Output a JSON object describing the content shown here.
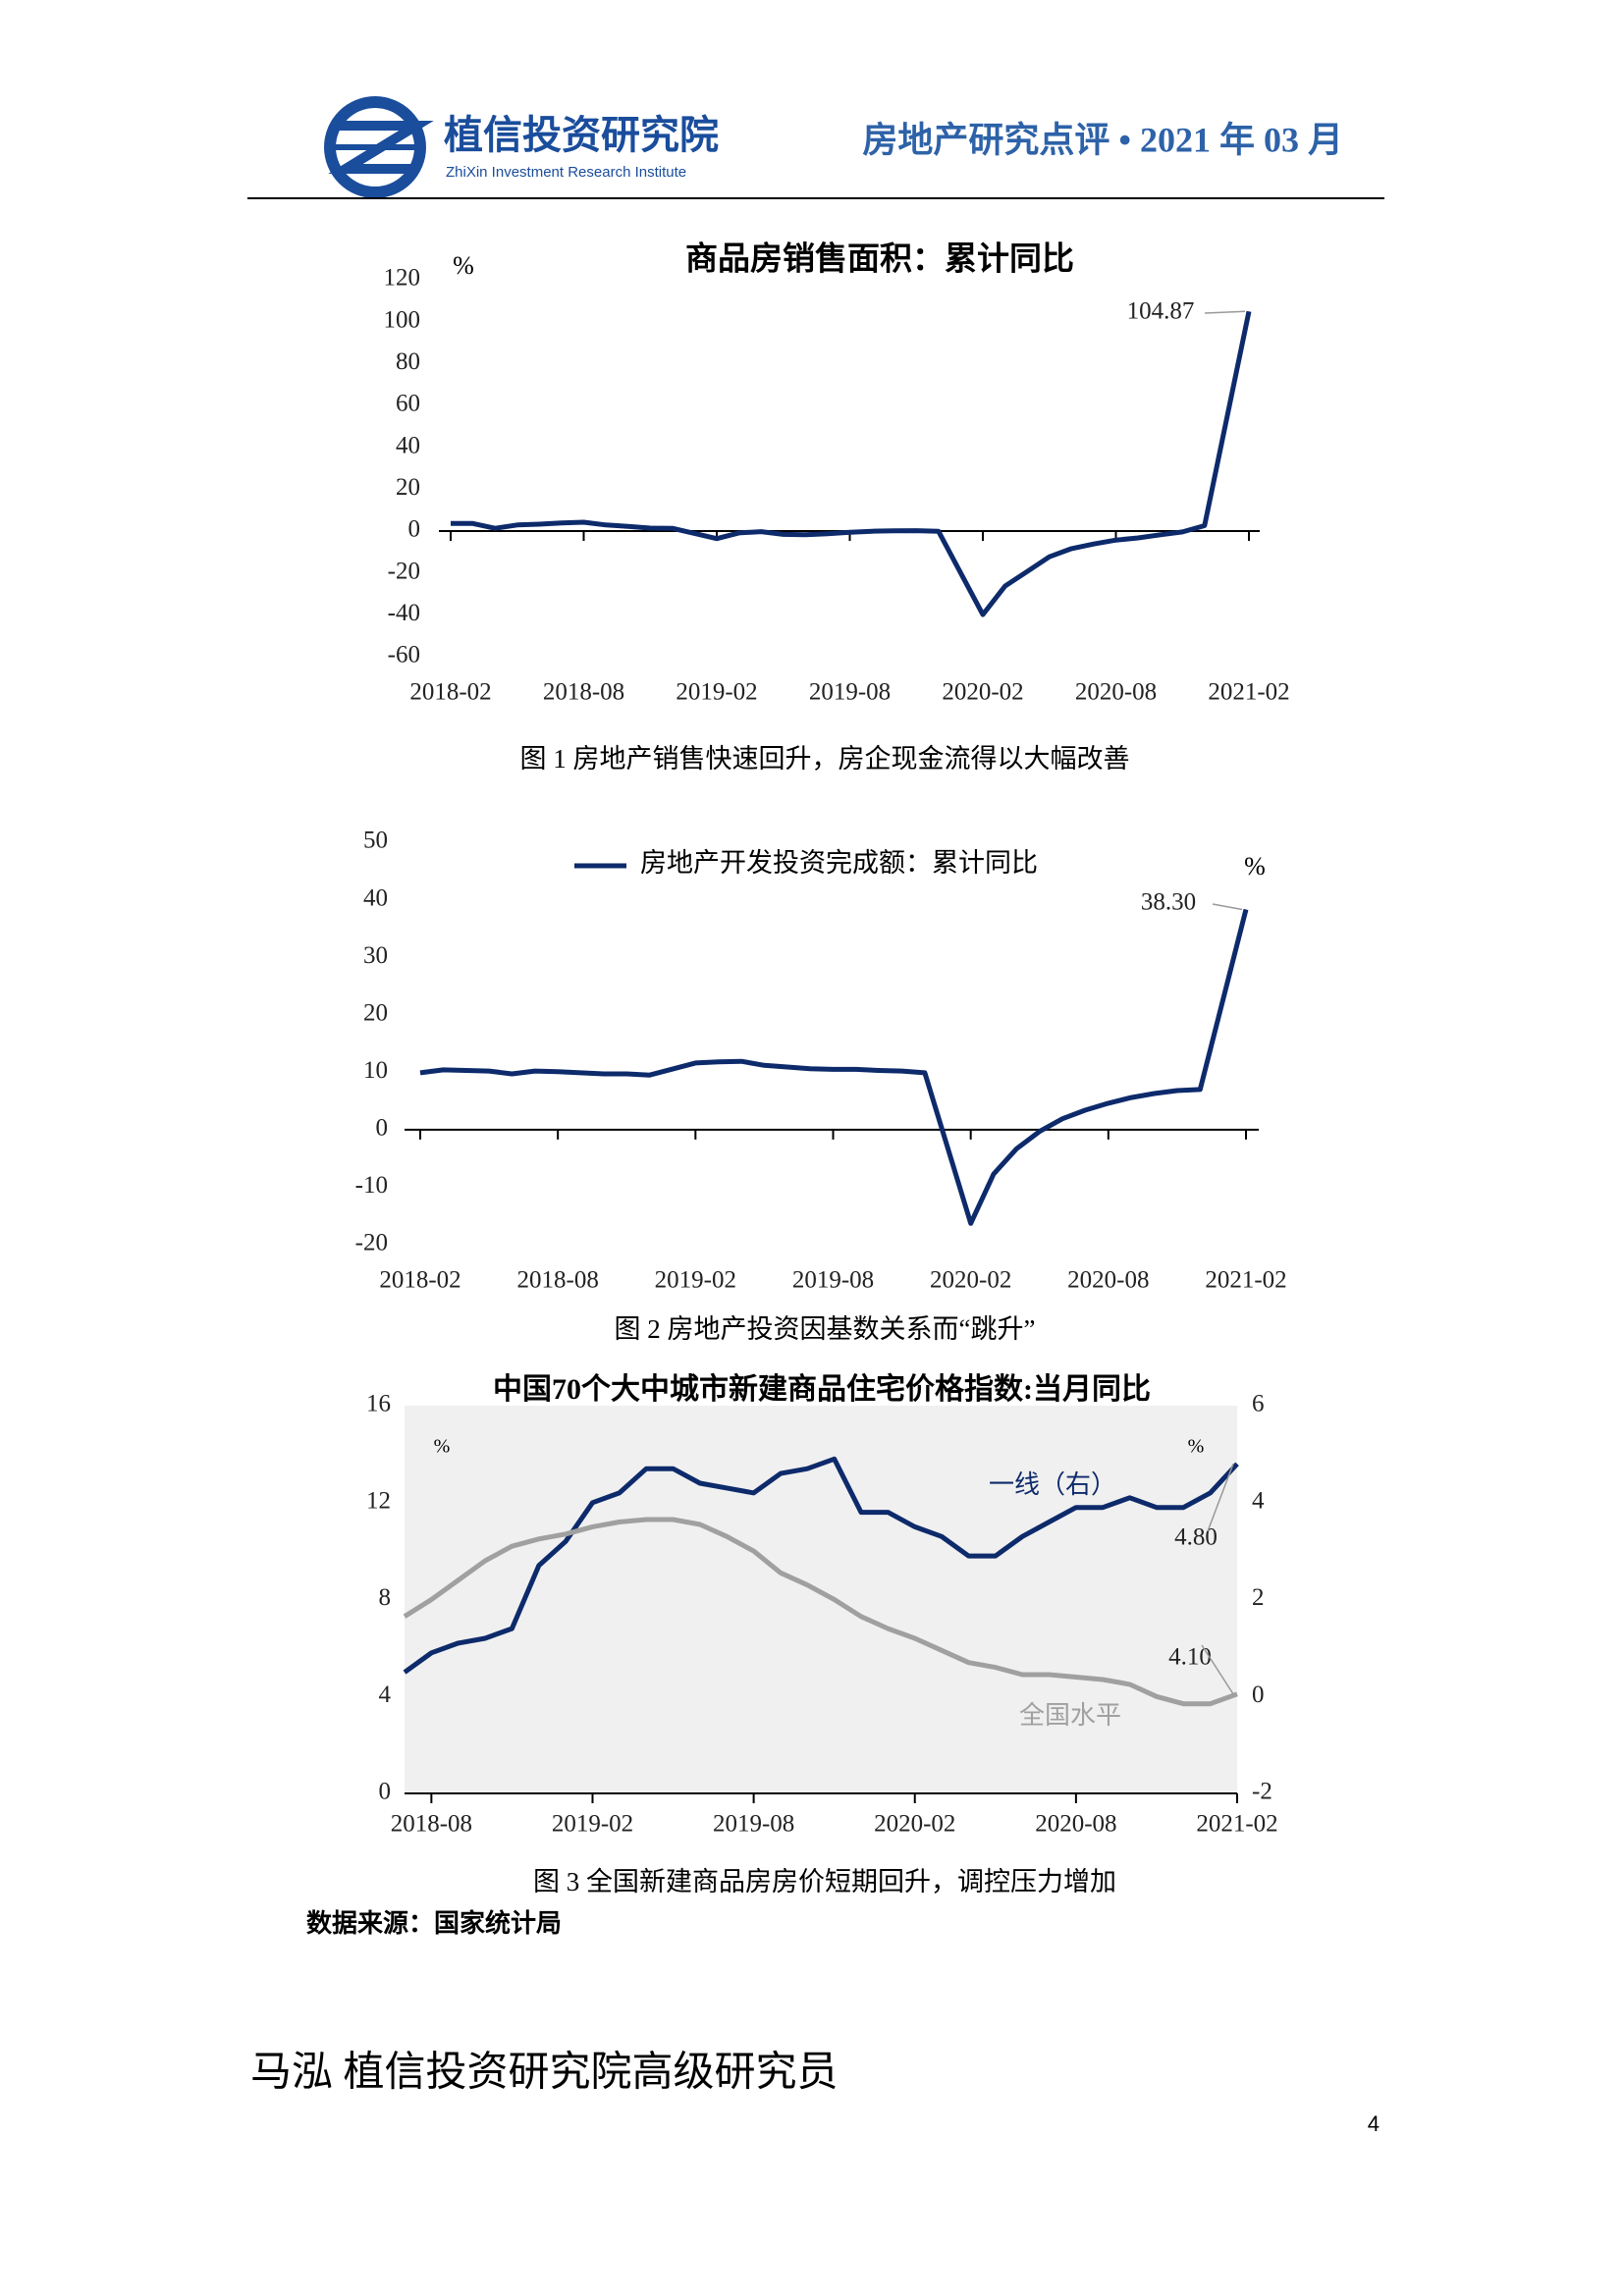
{
  "header": {
    "org_name": "植信投资研究院",
    "org_name_en": "ZhiXin Investment Research Institute",
    "report": "房地产研究点评 • 2021 年 03 月"
  },
  "chart_data": [
    {
      "type": "line",
      "title": "商品房销售面积：累计同比",
      "y_label": "%",
      "x": [
        "2018-02",
        "2018-03",
        "2018-04",
        "2018-05",
        "2018-06",
        "2018-07",
        "2018-08",
        "2018-09",
        "2018-10",
        "2018-11",
        "2018-12",
        "2019-02",
        "2019-03",
        "2019-04",
        "2019-05",
        "2019-06",
        "2019-07",
        "2019-08",
        "2019-09",
        "2019-10",
        "2019-11",
        "2019-12",
        "2020-02",
        "2020-03",
        "2020-04",
        "2020-05",
        "2020-06",
        "2020-07",
        "2020-08",
        "2020-09",
        "2020-10",
        "2020-11",
        "2020-12",
        "2021-02"
      ],
      "xlim": [
        "2018-02",
        "2021-02"
      ],
      "xticks": [
        "2018-02",
        "2018-08",
        "2019-02",
        "2019-08",
        "2020-02",
        "2020-08",
        "2021-02"
      ],
      "ylim": [
        -60,
        120
      ],
      "yticks": [
        -60,
        -40,
        -20,
        0,
        20,
        40,
        60,
        80,
        100,
        120
      ],
      "series": [
        {
          "color": "#0d2a6b",
          "values": [
            3.6,
            3.6,
            1.3,
            2.9,
            3.3,
            3.9,
            4.2,
            2.9,
            2.2,
            1.4,
            1.3,
            -3.6,
            -0.9,
            -0.3,
            -1.6,
            -1.8,
            -1.3,
            -0.6,
            -0.1,
            0.1,
            0.2,
            -0.1,
            -39.9,
            -26.3,
            -19.3,
            -12.3,
            -8.4,
            -6.2,
            -4.3,
            -3.3,
            -1.8,
            -0.4,
            2.6,
            104.87
          ]
        }
      ]
    },
    {
      "type": "line",
      "legend": "top",
      "y_label": "%",
      "x": [
        "2018-02",
        "2018-03",
        "2018-04",
        "2018-05",
        "2018-06",
        "2018-07",
        "2018-08",
        "2018-09",
        "2018-10",
        "2018-11",
        "2018-12",
        "2019-02",
        "2019-03",
        "2019-04",
        "2019-05",
        "2019-06",
        "2019-07",
        "2019-08",
        "2019-09",
        "2019-10",
        "2019-11",
        "2019-12",
        "2020-02",
        "2020-03",
        "2020-04",
        "2020-05",
        "2020-06",
        "2020-07",
        "2020-08",
        "2020-09",
        "2020-10",
        "2020-11",
        "2020-12",
        "2021-02"
      ],
      "xlim": [
        "2018-02",
        "2021-02"
      ],
      "xticks": [
        "2018-02",
        "2018-08",
        "2019-02",
        "2019-08",
        "2020-02",
        "2020-08",
        "2021-02"
      ],
      "ylim": [
        -20,
        50
      ],
      "yticks": [
        -20,
        -10,
        0,
        10,
        20,
        30,
        40,
        50
      ],
      "series": [
        {
          "name": "房地产开发投资完成额：累计同比",
          "color": "#0d2a6b",
          "values": [
            9.9,
            10.4,
            10.3,
            10.2,
            9.7,
            10.2,
            10.1,
            9.9,
            9.7,
            9.7,
            9.5,
            11.6,
            11.8,
            11.9,
            11.2,
            10.9,
            10.6,
            10.5,
            10.5,
            10.3,
            10.2,
            9.9,
            -16.3,
            -7.7,
            -3.3,
            -0.3,
            1.9,
            3.4,
            4.6,
            5.6,
            6.3,
            6.8,
            7.0,
            38.3
          ],
          "value_labels": [
            null,
            null,
            null,
            null,
            null,
            null,
            null,
            null,
            null,
            null,
            null,
            null,
            null,
            null,
            null,
            null,
            null,
            null,
            null,
            null,
            null,
            null,
            null,
            null,
            null,
            null,
            null,
            null,
            null,
            null,
            null,
            null,
            null,
            "38.30"
          ]
        }
      ]
    },
    {
      "type": "line",
      "title": "中国70个大中城市新建商品住宅价格指数:当月同比",
      "y_label": "%",
      "y2_label": "%",
      "background": "#f0f0f0",
      "x": [
        "2018-07",
        "2018-08",
        "2018-09",
        "2018-10",
        "2018-11",
        "2018-12",
        "2019-01",
        "2019-02",
        "2019-03",
        "2019-04",
        "2019-05",
        "2019-06",
        "2019-07",
        "2019-08",
        "2019-09",
        "2019-10",
        "2019-11",
        "2019-12",
        "2020-01",
        "2020-02",
        "2020-03",
        "2020-04",
        "2020-05",
        "2020-06",
        "2020-07",
        "2020-08",
        "2020-09",
        "2020-10",
        "2020-11",
        "2020-12",
        "2021-01",
        "2021-02"
      ],
      "xlim": [
        "2018-07",
        "2021-02"
      ],
      "xticks": [
        "2018-08",
        "2019-02",
        "2019-08",
        "2020-02",
        "2020-08",
        "2021-02"
      ],
      "ylim": [
        0,
        16
      ],
      "yticks": [
        0,
        4,
        8,
        12,
        16
      ],
      "y2lim": [
        -2,
        6
      ],
      "y2ticks": [
        -2,
        0,
        2,
        4,
        6
      ],
      "series": [
        {
          "name": "一线（右）",
          "axis": "y2",
          "color": "#0d2a6b",
          "values": [
            0.5,
            0.9,
            1.1,
            1.2,
            1.4,
            2.7,
            3.2,
            4.0,
            4.2,
            4.7,
            4.7,
            4.4,
            4.3,
            4.2,
            4.6,
            4.7,
            4.9,
            3.8,
            3.8,
            3.5,
            3.3,
            2.9,
            2.9,
            3.3,
            3.6,
            3.9,
            3.9,
            4.1,
            3.9,
            3.9,
            4.2,
            4.8
          ],
          "value_labels": [
            null,
            null,
            null,
            null,
            null,
            null,
            null,
            null,
            null,
            null,
            null,
            null,
            null,
            null,
            null,
            null,
            null,
            null,
            null,
            null,
            null,
            null,
            null,
            null,
            null,
            null,
            null,
            null,
            null,
            null,
            null,
            "4.80"
          ]
        },
        {
          "name": "全国水平",
          "color": "#a0a0a0",
          "values": [
            7.3,
            8.0,
            8.8,
            9.6,
            10.2,
            10.5,
            10.7,
            11.0,
            11.2,
            11.3,
            11.3,
            11.1,
            10.6,
            10.0,
            9.1,
            8.6,
            8.0,
            7.3,
            6.8,
            6.4,
            5.9,
            5.4,
            5.2,
            4.9,
            4.9,
            4.8,
            4.7,
            4.5,
            4.0,
            3.7,
            3.7,
            4.1
          ],
          "value_labels": [
            null,
            null,
            null,
            null,
            null,
            null,
            null,
            null,
            null,
            null,
            null,
            null,
            null,
            null,
            null,
            null,
            null,
            null,
            null,
            null,
            null,
            null,
            null,
            null,
            null,
            null,
            null,
            null,
            null,
            null,
            null,
            "4.10"
          ]
        }
      ]
    }
  ],
  "captions": [
    "图 1  房地产销售快速回升，房企现金流得以大幅改善",
    "图 2  房地产投资因基数关系而“跳升”",
    "图 3 全国新建商品房房价短期回升，调控压力增加"
  ],
  "source": "数据来源：国家统计局",
  "author": "马泓  植信投资研究院高级研究员",
  "page_number": "4"
}
